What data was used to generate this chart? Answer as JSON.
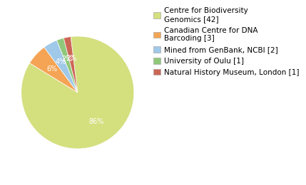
{
  "labels": [
    "Centre for Biodiversity\nGenomics [42]",
    "Canadian Centre for DNA\nBarcoding [3]",
    "Mined from GenBank, NCBI [2]",
    "University of Oulu [1]",
    "Natural History Museum, London [1]"
  ],
  "values": [
    42,
    3,
    2,
    1,
    1
  ],
  "colors": [
    "#d4df7e",
    "#f4a454",
    "#a0c8e8",
    "#8fc87a",
    "#cc6655"
  ],
  "background_color": "#ffffff",
  "legend_fontsize": 7.5,
  "autopct_fontsize": 7,
  "startangle": 97
}
